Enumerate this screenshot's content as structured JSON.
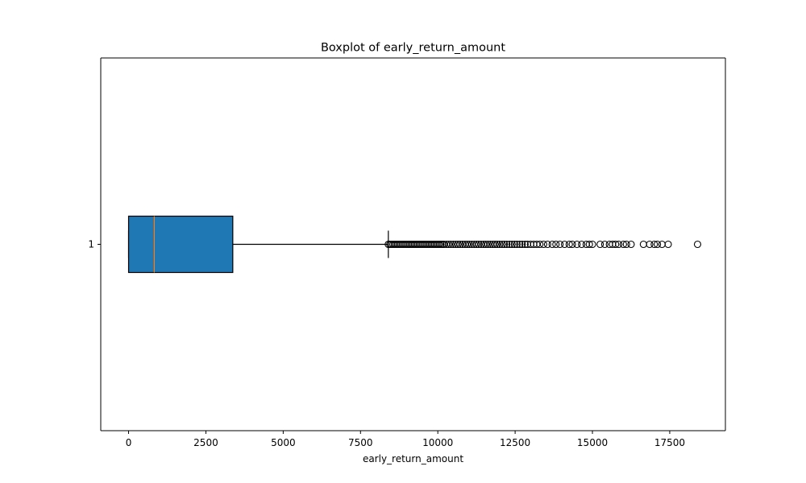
{
  "chart_data": {
    "type": "boxplot",
    "title": "Boxplot of early_return_amount",
    "xlabel": "early_return_amount",
    "ylabel": "",
    "orientation": "horizontal",
    "xlim": [
      -900,
      19300
    ],
    "xticks": [
      0,
      2500,
      5000,
      7500,
      10000,
      12500,
      15000,
      17500
    ],
    "yticks": [
      "1"
    ],
    "grid": false,
    "colors": {
      "box_fill": "#1f77b4",
      "box_edge": "#000000",
      "median": "#ff7f0e",
      "whisker": "#000000",
      "flier_edge": "#000000"
    },
    "series": [
      {
        "category": "1",
        "whisker_low": 0,
        "q1": 0,
        "median": 830,
        "q3": 3370,
        "whisker_high": 8400,
        "outliers": [
          8400,
          8450,
          8500,
          8550,
          8600,
          8650,
          8700,
          8750,
          8800,
          8850,
          8900,
          8950,
          9000,
          9050,
          9100,
          9150,
          9200,
          9250,
          9300,
          9350,
          9400,
          9450,
          9500,
          9550,
          9600,
          9650,
          9700,
          9750,
          9800,
          9850,
          9900,
          9950,
          10000,
          10050,
          10100,
          10150,
          10200,
          10280,
          10350,
          10420,
          10500,
          10580,
          10650,
          10720,
          10800,
          10880,
          10950,
          11020,
          11100,
          11180,
          11250,
          11320,
          11400,
          11480,
          11550,
          11620,
          11700,
          11780,
          11850,
          11920,
          12000,
          12080,
          12150,
          12230,
          12320,
          12400,
          12480,
          12560,
          12650,
          12730,
          12820,
          12900,
          13000,
          13100,
          13200,
          13300,
          13420,
          13550,
          13700,
          13820,
          13950,
          14100,
          14250,
          14350,
          14500,
          14650,
          14800,
          14900,
          15000,
          15250,
          15400,
          15550,
          15650,
          15750,
          15850,
          16000,
          16100,
          16250,
          16650,
          16850,
          17000,
          17100,
          17250,
          17450,
          18400
        ]
      }
    ]
  }
}
